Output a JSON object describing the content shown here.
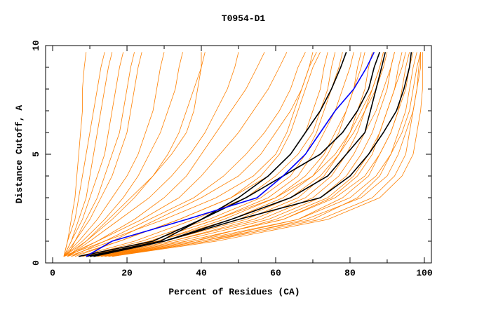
{
  "chart_data": {
    "type": "line",
    "title": "T0954-D1",
    "xlabel": "Percent of Residues (CA)",
    "ylabel": "Distance Cutoff, A",
    "xlim": [
      -1.9,
      101.9
    ],
    "ylim": [
      0,
      10
    ],
    "xticks": [
      0,
      20,
      40,
      60,
      80,
      100
    ],
    "yticks": [
      0,
      5,
      10
    ],
    "grid": false,
    "colors": {
      "other": "#ff8000",
      "highlight": "#000000",
      "selected": "#0000ff"
    },
    "y_grid": [
      0.3,
      1,
      2,
      3,
      4,
      5,
      6,
      7,
      8,
      9,
      9.7
    ],
    "series_other": [
      [
        3,
        4,
        5,
        6,
        6.5,
        7,
        7.5,
        8,
        8,
        8.5,
        9
      ],
      [
        3,
        4,
        6,
        7,
        8,
        9,
        10,
        11,
        12,
        13,
        14
      ],
      [
        3,
        5,
        7,
        9,
        10,
        11,
        12,
        13,
        14,
        15,
        16
      ],
      [
        3,
        5,
        8,
        10,
        12,
        14,
        15,
        16,
        17,
        18,
        19
      ],
      [
        4,
        6,
        9,
        12,
        14,
        16,
        18,
        19,
        20,
        21,
        22
      ],
      [
        3,
        6,
        10,
        13,
        16,
        18,
        20,
        21,
        22,
        23,
        24
      ],
      [
        3,
        7,
        12,
        16,
        20,
        23,
        25,
        27,
        28,
        29,
        30
      ],
      [
        3,
        8,
        14,
        19,
        23,
        26,
        29,
        31,
        33,
        34,
        35
      ],
      [
        4,
        9,
        16,
        22,
        27,
        31,
        34,
        36,
        38,
        40,
        41
      ],
      [
        3,
        9,
        15,
        21,
        27,
        32,
        36,
        38,
        39,
        40,
        40
      ],
      [
        4,
        10,
        18,
        26,
        32,
        37,
        41,
        44,
        47,
        49,
        50
      ],
      [
        3,
        12,
        22,
        30,
        36,
        40,
        44,
        48,
        52,
        55,
        57
      ],
      [
        4,
        12,
        24,
        34,
        40,
        45,
        50,
        54,
        58,
        61,
        63
      ],
      [
        3,
        14,
        26,
        38,
        46,
        52,
        57,
        61,
        64,
        66,
        68
      ],
      [
        4,
        16,
        28,
        40,
        50,
        56,
        60,
        64,
        67,
        69,
        71
      ],
      [
        5,
        14,
        30,
        44,
        54,
        60,
        63,
        65,
        67,
        69,
        70
      ],
      [
        5,
        18,
        34,
        48,
        56,
        61,
        64,
        66,
        68,
        70,
        72
      ],
      [
        6,
        18,
        34,
        48,
        58,
        64,
        68,
        70,
        72,
        73,
        74
      ],
      [
        7,
        22,
        38,
        52,
        60,
        66,
        70,
        72,
        74,
        75,
        76
      ],
      [
        8,
        24,
        42,
        56,
        64,
        68,
        71,
        73,
        75,
        77,
        78
      ],
      [
        9,
        26,
        44,
        58,
        66,
        70,
        73,
        76,
        78,
        80,
        81
      ],
      [
        9,
        28,
        46,
        60,
        68,
        73,
        76,
        79,
        81,
        83,
        84
      ],
      [
        10,
        28,
        48,
        62,
        70,
        74,
        77,
        79,
        81,
        82,
        83
      ],
      [
        10,
        30,
        50,
        64,
        72,
        77,
        81,
        84,
        87,
        89,
        90
      ],
      [
        8,
        26,
        44,
        60,
        70,
        76,
        80,
        83,
        86,
        88,
        89
      ],
      [
        11,
        30,
        52,
        66,
        73,
        77,
        80,
        82,
        84,
        85,
        86
      ],
      [
        11,
        32,
        56,
        70,
        77,
        81,
        84,
        87,
        89,
        91,
        92
      ],
      [
        12,
        32,
        54,
        68,
        75,
        79,
        82,
        84,
        86,
        88,
        89
      ],
      [
        12,
        34,
        58,
        72,
        79,
        83,
        86,
        88,
        90,
        91,
        92
      ],
      [
        12,
        36,
        62,
        76,
        84,
        88,
        91,
        93,
        95,
        96,
        97
      ],
      [
        13,
        36,
        62,
        75,
        82,
        86,
        88,
        90,
        92,
        93,
        94
      ],
      [
        13,
        38,
        60,
        74,
        81,
        85,
        88,
        90,
        92,
        94,
        95
      ],
      [
        14,
        38,
        66,
        78,
        85,
        88,
        91,
        93,
        94,
        95,
        96
      ],
      [
        14,
        40,
        66,
        80,
        87,
        91,
        94,
        96,
        97,
        98,
        99
      ],
      [
        15,
        40,
        70,
        82,
        88,
        91,
        93,
        95,
        96,
        97,
        98
      ],
      [
        15,
        42,
        68,
        83,
        90,
        93,
        95,
        97,
        98,
        98.5,
        99
      ],
      [
        16,
        42,
        72,
        86,
        92,
        95,
        96,
        97,
        98,
        99,
        99
      ],
      [
        16,
        44,
        74,
        88,
        94,
        97,
        98,
        99,
        99.5,
        99.5,
        99.5
      ]
    ],
    "series_highlight": [
      [
        7,
        27,
        40,
        50,
        58,
        64,
        68,
        72,
        75,
        77.5,
        79
      ],
      [
        9,
        29,
        40,
        52,
        62,
        72,
        78,
        82,
        85,
        86.5,
        88
      ],
      [
        11,
        30,
        48,
        64,
        74,
        79,
        84,
        85.5,
        87,
        88.5,
        89.5
      ],
      [
        10,
        30,
        50,
        72,
        80,
        85,
        89,
        92.5,
        94.5,
        96,
        96.5
      ]
    ],
    "series_selected": [
      9,
      16,
      36,
      55,
      62,
      68,
      72,
      76,
      81,
      84.5,
      86.5
    ]
  }
}
